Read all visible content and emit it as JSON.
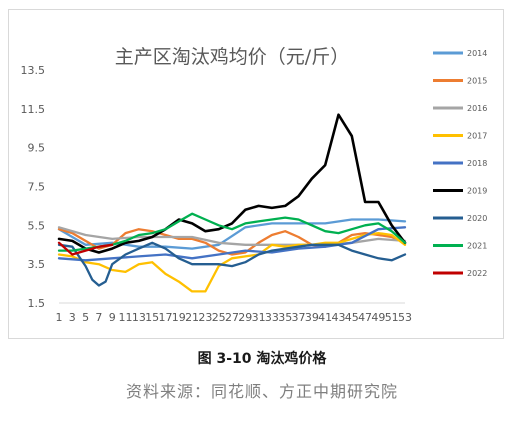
{
  "chart_data": {
    "type": "line",
    "title": "主产区淘汰鸡均价（元/斤）",
    "xlabel": "",
    "ylabel": "",
    "ylim": [
      1.5,
      13.5
    ],
    "yticks": [
      1.5,
      3.5,
      5.5,
      7.5,
      9.5,
      11.5,
      13.5
    ],
    "xlim": [
      1,
      53
    ],
    "xticks": [
      1,
      3,
      5,
      7,
      9,
      11,
      13,
      15,
      17,
      19,
      21,
      23,
      25,
      27,
      29,
      31,
      33,
      35,
      37,
      39,
      41,
      43,
      45,
      47,
      49,
      51,
      53
    ],
    "grid": false,
    "legend": "right",
    "series": [
      {
        "name": "2014",
        "color": "#5b9bd5",
        "x": [
          1,
          5,
          9,
          13,
          17,
          21,
          25,
          29,
          33,
          37,
          41,
          45,
          49,
          53
        ],
        "y": [
          5.3,
          4.5,
          4.6,
          4.4,
          4.4,
          4.3,
          4.5,
          5.4,
          5.6,
          5.6,
          5.6,
          5.8,
          5.8,
          5.7
        ]
      },
      {
        "name": "2015",
        "color": "#ed7d31",
        "x": [
          1,
          3,
          5,
          7,
          9,
          11,
          13,
          15,
          17,
          19,
          21,
          23,
          25,
          27,
          29,
          31,
          33,
          35,
          37,
          39,
          41,
          43,
          45,
          47,
          49,
          51,
          53
        ],
        "y": [
          5.3,
          5.1,
          4.7,
          4.3,
          4.5,
          5.1,
          5.3,
          5.2,
          5.0,
          4.8,
          4.8,
          4.6,
          4.2,
          4.0,
          4.1,
          4.6,
          5.0,
          5.2,
          4.9,
          4.5,
          4.4,
          4.6,
          5.0,
          5.1,
          5.0,
          4.9,
          4.6
        ]
      },
      {
        "name": "2016",
        "color": "#a5a5a5",
        "x": [
          1,
          5,
          9,
          13,
          17,
          21,
          25,
          29,
          33,
          37,
          41,
          45,
          49,
          53
        ],
        "y": [
          5.4,
          5.0,
          4.8,
          4.9,
          4.9,
          4.9,
          4.6,
          4.5,
          4.5,
          4.5,
          4.5,
          4.6,
          4.8,
          4.7
        ]
      },
      {
        "name": "2017",
        "color": "#ffc000",
        "x": [
          1,
          3,
          5,
          7,
          9,
          11,
          13,
          15,
          17,
          19,
          21,
          23,
          25,
          27,
          29,
          31,
          33,
          35,
          37,
          39,
          41,
          43,
          45,
          47,
          49,
          51,
          53
        ],
        "y": [
          4.0,
          3.9,
          3.6,
          3.5,
          3.2,
          3.1,
          3.5,
          3.6,
          3.0,
          2.6,
          2.1,
          2.1,
          3.4,
          3.8,
          3.9,
          4.0,
          4.5,
          4.4,
          4.5,
          4.5,
          4.6,
          4.6,
          4.8,
          5.0,
          5.1,
          5.0,
          4.5
        ]
      },
      {
        "name": "2018",
        "color": "#4472c4",
        "x": [
          1,
          5,
          9,
          13,
          17,
          21,
          25,
          29,
          33,
          37,
          41,
          45,
          49,
          53
        ],
        "y": [
          3.8,
          3.7,
          3.8,
          3.9,
          4.0,
          3.8,
          4.0,
          4.2,
          4.1,
          4.3,
          4.4,
          4.6,
          5.3,
          5.4
        ]
      },
      {
        "name": "2019",
        "color": "#000000",
        "x": [
          1,
          3,
          5,
          7,
          9,
          11,
          13,
          15,
          17,
          19,
          21,
          23,
          25,
          27,
          29,
          31,
          33,
          35,
          37,
          39,
          41,
          43,
          45,
          47,
          49,
          51,
          53
        ],
        "y": [
          4.8,
          4.7,
          4.3,
          4.1,
          4.3,
          4.6,
          4.7,
          4.9,
          5.3,
          5.8,
          5.6,
          5.2,
          5.3,
          5.6,
          6.3,
          6.5,
          6.4,
          6.5,
          7.0,
          7.9,
          8.6,
          11.2,
          10.1,
          6.7,
          6.7,
          5.5,
          4.6
        ]
      },
      {
        "name": "2020",
        "color": "#255e91",
        "x": [
          1,
          3,
          5,
          6,
          7,
          8,
          9,
          11,
          13,
          15,
          17,
          19,
          21,
          23,
          25,
          27,
          29,
          31,
          33,
          35,
          37,
          39,
          41,
          43,
          45,
          47,
          49,
          51,
          53
        ],
        "y": [
          4.5,
          4.4,
          3.4,
          2.7,
          2.4,
          2.6,
          3.5,
          4.0,
          4.3,
          4.6,
          4.3,
          3.8,
          3.5,
          3.5,
          3.5,
          3.4,
          3.6,
          4.0,
          4.2,
          4.3,
          4.4,
          4.5,
          4.5,
          4.5,
          4.2,
          4.0,
          3.8,
          3.7,
          4.0
        ]
      },
      {
        "name": "2021",
        "color": "#00b050",
        "x": [
          1,
          3,
          5,
          7,
          9,
          11,
          13,
          15,
          17,
          19,
          21,
          23,
          25,
          27,
          29,
          31,
          33,
          35,
          37,
          39,
          41,
          43,
          45,
          47,
          49,
          51,
          53
        ],
        "y": [
          4.2,
          4.2,
          4.3,
          4.4,
          4.5,
          4.7,
          5.0,
          5.1,
          5.3,
          5.7,
          6.1,
          5.8,
          5.5,
          5.3,
          5.6,
          5.7,
          5.8,
          5.9,
          5.8,
          5.5,
          5.2,
          5.1,
          5.3,
          5.5,
          5.6,
          5.2,
          4.6
        ]
      },
      {
        "name": "2022",
        "color": "#c00000",
        "x": [
          1,
          3,
          5,
          7,
          9
        ],
        "y": [
          4.6,
          4.0,
          4.2,
          4.4,
          4.5
        ]
      }
    ]
  },
  "caption": "图 3-10 淘汰鸡价格",
  "source": "资料来源：同花顺、方正中期研究院"
}
